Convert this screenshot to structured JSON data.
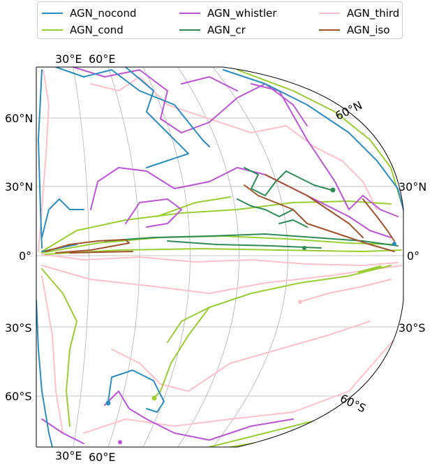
{
  "chart_data": {
    "type": "map",
    "projection": "hammer/mollweide (partial view)",
    "legend": {
      "placement": "top",
      "entries": [
        {
          "name": "AGN_nocond",
          "color": "#2b8cbe"
        },
        {
          "name": "AGN_cond",
          "color": "#9acd32"
        },
        {
          "name": "AGN_whistler",
          "color": "#ba55d3"
        },
        {
          "name": "AGN_cr",
          "color": "#2e8b57"
        },
        {
          "name": "AGN_third",
          "color": "#ffc0cb"
        },
        {
          "name": "AGN_iso",
          "color": "#a0522d"
        }
      ]
    },
    "lat_ticks": [
      "60°N",
      "30°N",
      "0°",
      "30°S",
      "60°S"
    ],
    "lat_ticks_right": [
      "30°N",
      "0°",
      "30°S"
    ],
    "edge_labels": [
      "60°N",
      "60°S"
    ],
    "lon_ticks_top": [
      "30°E",
      "60°E"
    ],
    "lon_ticks_bottom": [
      "30°E",
      "60°E"
    ],
    "grid": true
  }
}
